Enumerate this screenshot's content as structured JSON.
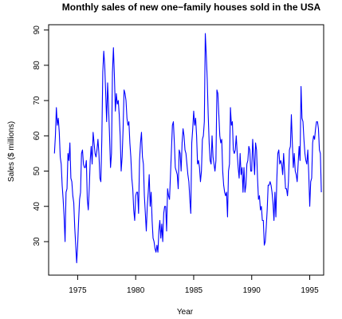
{
  "chart_data": {
    "type": "line",
    "title": "Monthly sales of new one−family houses sold in the USA",
    "xlabel": "Year",
    "ylabel": "Sales ($ millions)",
    "xlim": [
      1972.5,
      1996.2
    ],
    "ylim": [
      20.5,
      91.5
    ],
    "xticks": [
      1975,
      1980,
      1985,
      1990,
      1995
    ],
    "yticks": [
      30,
      40,
      50,
      60,
      70,
      80,
      90
    ],
    "grid": false,
    "line_color": "#0000ff",
    "series": [
      {
        "x_start": 1973.0,
        "x_step": 0.08333333,
        "values": [
          55,
          60,
          68,
          63,
          65,
          61,
          54,
          52,
          46,
          42,
          37,
          30,
          44,
          45,
          55,
          53,
          58,
          48,
          47,
          43,
          41,
          34,
          29,
          24,
          29,
          36,
          42,
          44,
          55,
          56,
          52,
          51,
          51,
          53,
          42,
          39,
          45,
          53,
          57,
          52,
          61,
          58,
          55,
          54,
          56,
          59,
          55,
          48,
          47,
          59,
          78,
          84,
          80,
          72,
          64,
          75,
          68,
          60,
          51,
          55,
          78,
          85,
          77,
          67,
          72,
          69,
          70,
          66,
          60,
          50,
          54,
          62,
          73,
          72,
          70,
          65,
          63,
          64,
          58,
          54,
          48,
          45,
          39,
          36,
          43,
          44,
          44,
          38,
          53,
          58,
          61,
          54,
          52,
          43,
          38,
          33,
          40,
          44,
          49,
          40,
          44,
          36,
          31,
          30,
          28,
          27,
          29,
          27,
          33,
          36,
          31,
          35,
          30,
          38,
          40,
          40,
          33,
          45,
          43,
          42,
          49,
          56,
          63,
          64,
          58,
          51,
          50,
          49,
          45,
          56,
          55,
          50,
          58,
          62,
          60,
          56,
          55,
          52,
          49,
          47,
          42,
          38,
          58,
          62,
          67,
          63,
          65,
          60,
          52,
          53,
          51,
          47,
          50,
          59,
          60,
          64,
          89,
          83,
          76,
          66,
          58,
          53,
          52,
          60,
          54,
          52,
          50,
          53,
          73,
          72,
          66,
          60,
          58,
          59,
          50,
          46,
          44,
          43,
          44,
          37,
          50,
          52,
          68,
          63,
          64,
          56,
          55,
          56,
          60,
          55,
          51,
          48,
          55,
          49,
          51,
          44,
          51,
          44,
          46,
          52,
          53,
          57,
          56,
          50,
          50,
          59,
          54,
          49,
          58,
          56,
          48,
          42,
          43,
          39,
          40,
          36,
          36,
          29,
          30,
          34,
          39,
          46,
          46,
          47,
          46,
          44,
          41,
          36,
          44,
          37,
          48,
          55,
          56,
          52,
          53,
          52,
          49,
          55,
          50,
          45,
          45,
          43,
          47,
          56,
          57,
          66,
          58,
          51,
          55,
          50,
          49,
          47,
          52,
          57,
          53,
          74,
          65,
          64,
          59,
          55,
          53,
          52,
          56,
          49,
          40,
          47,
          48,
          58,
          60,
          59,
          62,
          64,
          64,
          62,
          56,
          55,
          44
        ]
      }
    ]
  }
}
